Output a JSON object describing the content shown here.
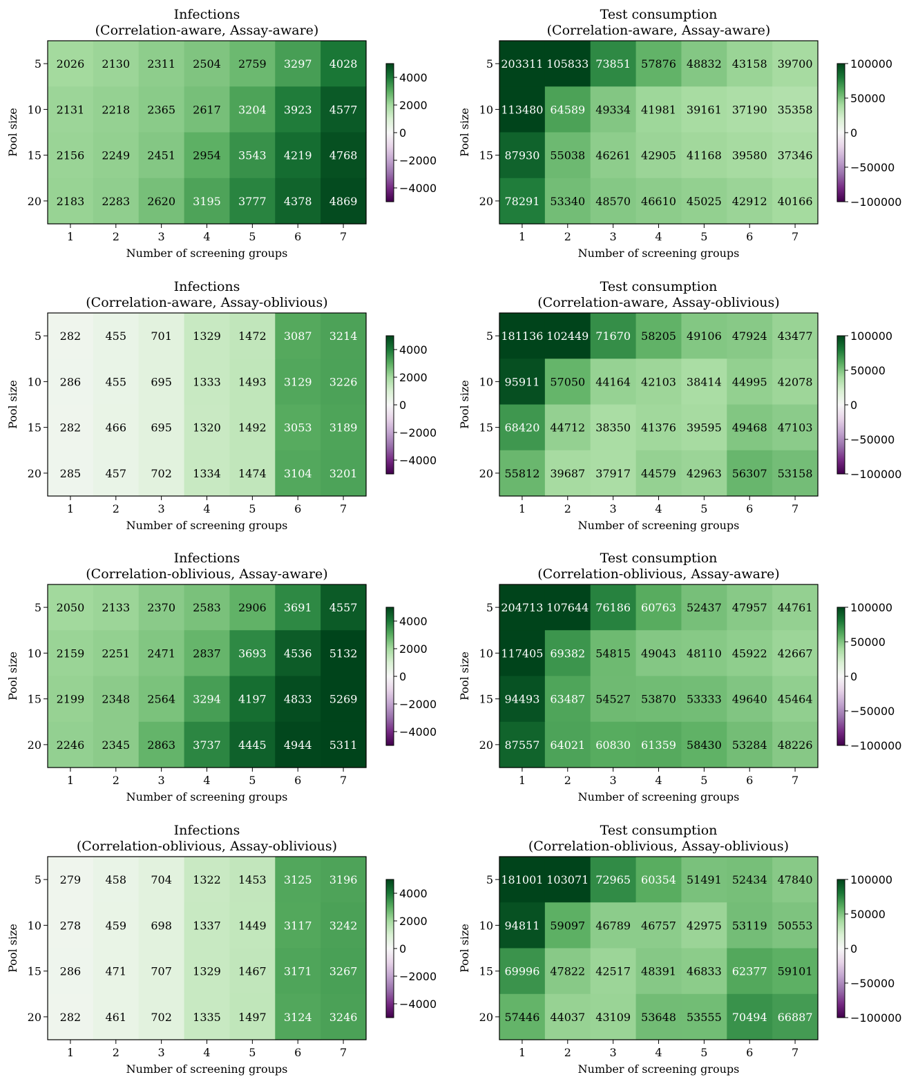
{
  "colors": {
    "colormap": "PRGn",
    "stops": [
      "#40004b",
      "#762a83",
      "#9970ab",
      "#c2a5cf",
      "#e7d4e8",
      "#f7f7f7",
      "#d9f0d3",
      "#a6dba0",
      "#5aae61",
      "#1b7837",
      "#00441b"
    ]
  },
  "chart_data": [
    {
      "type": "heatmap",
      "title": "Infections\n(Correlation-aware, Assay-aware)",
      "xlabel": "Number of screening groups",
      "ylabel": "Pool size",
      "x": [
        1,
        2,
        3,
        4,
        5,
        6,
        7
      ],
      "y": [
        5,
        10,
        15,
        20
      ],
      "values": [
        [
          2026,
          2130,
          2311,
          2504,
          2759,
          3297,
          4028
        ],
        [
          2131,
          2218,
          2365,
          2617,
          3204,
          3923,
          4577
        ],
        [
          2156,
          2249,
          2451,
          2954,
          3543,
          4219,
          4768
        ],
        [
          2183,
          2283,
          2620,
          3195,
          3777,
          4378,
          4869
        ]
      ],
      "color_range": [
        -5000,
        5000
      ],
      "colorbar_ticks": [
        4000,
        2000,
        0,
        -2000,
        -4000
      ],
      "colorbar_labels": [
        "4000",
        "2000",
        "0",
        "−2000",
        "−4000"
      ]
    },
    {
      "type": "heatmap",
      "title": "Test consumption\n(Correlation-aware, Assay-aware)",
      "xlabel": "Number of screening groups",
      "ylabel": "Pool size",
      "x": [
        1,
        2,
        3,
        4,
        5,
        6,
        7
      ],
      "y": [
        5,
        10,
        15,
        20
      ],
      "values": [
        [
          203311,
          105833,
          73851,
          57876,
          48832,
          43158,
          39700
        ],
        [
          113480,
          64589,
          49334,
          41981,
          39161,
          37190,
          35358
        ],
        [
          87930,
          55038,
          46261,
          42905,
          41168,
          39580,
          37346
        ],
        [
          78291,
          53340,
          48570,
          46610,
          45025,
          42912,
          40166
        ]
      ],
      "color_range": [
        -100000,
        100000
      ],
      "colorbar_ticks": [
        100000,
        50000,
        0,
        -50000,
        -100000
      ],
      "colorbar_labels": [
        "100000",
        "50000",
        "0",
        "−50000",
        "−100000"
      ]
    },
    {
      "type": "heatmap",
      "title": "Infections\n(Correlation-aware, Assay-oblivious)",
      "xlabel": "Number of screening groups",
      "ylabel": "Pool size",
      "x": [
        1,
        2,
        3,
        4,
        5,
        6,
        7
      ],
      "y": [
        5,
        10,
        15,
        20
      ],
      "values": [
        [
          282,
          455,
          701,
          1329,
          1472,
          3087,
          3214
        ],
        [
          286,
          455,
          695,
          1333,
          1493,
          3129,
          3226
        ],
        [
          282,
          466,
          695,
          1320,
          1492,
          3053,
          3189
        ],
        [
          285,
          457,
          702,
          1334,
          1474,
          3104,
          3201
        ]
      ],
      "color_range": [
        -5000,
        5000
      ],
      "colorbar_ticks": [
        4000,
        2000,
        0,
        -2000,
        -4000
      ],
      "colorbar_labels": [
        "4000",
        "2000",
        "0",
        "−2000",
        "−4000"
      ]
    },
    {
      "type": "heatmap",
      "title": "Test consumption\n(Correlation-aware, Assay-oblivious)",
      "xlabel": "Number of screening groups",
      "ylabel": "Pool size",
      "x": [
        1,
        2,
        3,
        4,
        5,
        6,
        7
      ],
      "y": [
        5,
        10,
        15,
        20
      ],
      "values": [
        [
          181136,
          102449,
          71670,
          58205,
          49106,
          47924,
          43477
        ],
        [
          95911,
          57050,
          44164,
          42103,
          38414,
          44995,
          42078
        ],
        [
          68420,
          44712,
          38350,
          41376,
          39595,
          49468,
          47103
        ],
        [
          55812,
          39687,
          37917,
          44579,
          42963,
          56307,
          53158
        ]
      ],
      "color_range": [
        -100000,
        100000
      ],
      "colorbar_ticks": [
        100000,
        50000,
        0,
        -50000,
        -100000
      ],
      "colorbar_labels": [
        "100000",
        "50000",
        "0",
        "−50000",
        "−100000"
      ]
    },
    {
      "type": "heatmap",
      "title": "Infections\n(Correlation-oblivious, Assay-aware)",
      "xlabel": "Number of screening groups",
      "ylabel": "Pool size",
      "x": [
        1,
        2,
        3,
        4,
        5,
        6,
        7
      ],
      "y": [
        5,
        10,
        15,
        20
      ],
      "values": [
        [
          2050,
          2133,
          2370,
          2583,
          2906,
          3691,
          4557
        ],
        [
          2159,
          2251,
          2471,
          2837,
          3693,
          4536,
          5132
        ],
        [
          2199,
          2348,
          2564,
          3294,
          4197,
          4833,
          5269
        ],
        [
          2246,
          2345,
          2863,
          3737,
          4445,
          4944,
          5311
        ]
      ],
      "color_range": [
        -5000,
        5000
      ],
      "colorbar_ticks": [
        4000,
        2000,
        0,
        -2000,
        -4000
      ],
      "colorbar_labels": [
        "4000",
        "2000",
        "0",
        "−2000",
        "−4000"
      ]
    },
    {
      "type": "heatmap",
      "title": "Test consumption\n(Correlation-oblivious, Assay-aware)",
      "xlabel": "Number of screening groups",
      "ylabel": "Pool size",
      "x": [
        1,
        2,
        3,
        4,
        5,
        6,
        7
      ],
      "y": [
        5,
        10,
        15,
        20
      ],
      "values": [
        [
          204713,
          107644,
          76186,
          60763,
          52437,
          47957,
          44761
        ],
        [
          117405,
          69382,
          54815,
          49043,
          48110,
          45922,
          42667
        ],
        [
          94493,
          63487,
          54527,
          53870,
          53333,
          49640,
          45464
        ],
        [
          87557,
          64021,
          60830,
          61359,
          58430,
          53284,
          48226
        ]
      ],
      "color_range": [
        -100000,
        100000
      ],
      "colorbar_ticks": [
        100000,
        50000,
        0,
        -50000,
        -100000
      ],
      "colorbar_labels": [
        "100000",
        "50000",
        "0",
        "−50000",
        "−100000"
      ]
    },
    {
      "type": "heatmap",
      "title": "Infections\n(Correlation-oblivious, Assay-oblivious)",
      "xlabel": "Number of screening groups",
      "ylabel": "Pool size",
      "x": [
        1,
        2,
        3,
        4,
        5,
        6,
        7
      ],
      "y": [
        5,
        10,
        15,
        20
      ],
      "values": [
        [
          279,
          458,
          704,
          1322,
          1453,
          3125,
          3196
        ],
        [
          278,
          459,
          698,
          1337,
          1449,
          3117,
          3242
        ],
        [
          286,
          471,
          707,
          1329,
          1467,
          3171,
          3267
        ],
        [
          282,
          461,
          702,
          1335,
          1497,
          3124,
          3246
        ]
      ],
      "color_range": [
        -5000,
        5000
      ],
      "colorbar_ticks": [
        4000,
        2000,
        0,
        -2000,
        -4000
      ],
      "colorbar_labels": [
        "4000",
        "2000",
        "0",
        "−2000",
        "−4000"
      ]
    },
    {
      "type": "heatmap",
      "title": "Test consumption\n(Correlation-oblivious, Assay-oblivious)",
      "xlabel": "Number of screening groups",
      "ylabel": "Pool size",
      "x": [
        1,
        2,
        3,
        4,
        5,
        6,
        7
      ],
      "y": [
        5,
        10,
        15,
        20
      ],
      "values": [
        [
          181001,
          103071,
          72965,
          60354,
          51491,
          52434,
          47840
        ],
        [
          94811,
          59097,
          46789,
          46757,
          42975,
          53119,
          50553
        ],
        [
          69996,
          47822,
          42517,
          48391,
          46833,
          62377,
          59101
        ],
        [
          57446,
          44037,
          43109,
          53648,
          53555,
          70494,
          66887
        ]
      ],
      "color_range": [
        -100000,
        100000
      ],
      "colorbar_ticks": [
        100000,
        50000,
        0,
        -50000,
        -100000
      ],
      "colorbar_labels": [
        "100000",
        "50000",
        "0",
        "−50000",
        "−100000"
      ]
    }
  ]
}
